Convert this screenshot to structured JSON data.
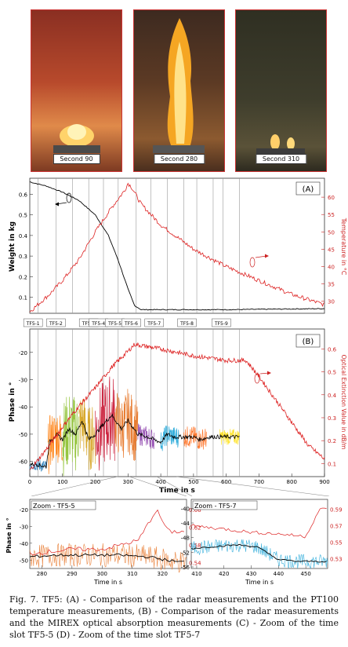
{
  "photos": [
    {
      "label": "Second 90"
    },
    {
      "label": "Second 280"
    },
    {
      "label": "Second 310"
    }
  ],
  "panel_a": {
    "tag": "(A)",
    "ylabel_left": "Weight in kg",
    "ylabel_right": "Temperature in °C",
    "yticks_left": [
      "0.6",
      "0.5",
      "0.4",
      "0.3",
      "0.2",
      "0.1"
    ],
    "yticks_right": [
      "60",
      "55",
      "50",
      "45",
      "40",
      "35",
      "30"
    ],
    "slots": [
      "TF5-1",
      "TF5-2",
      "TF5-3",
      "TF5-4",
      "TF5-5",
      "TF5-6",
      "TF5-7",
      "TF5-8",
      "TF5-9"
    ]
  },
  "panel_b": {
    "tag": "(B)",
    "ylabel_left": "Phase in °",
    "ylabel_right": "Optical Extinction Value in dB/m",
    "yticks_left": [
      "-20",
      "-30",
      "-40",
      "-50",
      "-60"
    ],
    "yticks_right": [
      "0.6",
      "0.5",
      "0.4",
      "0.3",
      "0.2",
      "0.1"
    ],
    "xticks": [
      "0",
      "100",
      "200",
      "300",
      "400",
      "500",
      "600",
      "700",
      "800",
      "900"
    ],
    "xlabel": "Time in s"
  },
  "panel_c": {
    "title": "Zoom - TF5-5",
    "ylabel": "Phase in °",
    "yticks_left": [
      "-20",
      "-30",
      "-40",
      "-50"
    ],
    "yticks_right": [
      "0.66",
      "0.62",
      "0.58",
      "0.54"
    ],
    "xticks": [
      "280",
      "290",
      "300",
      "310",
      "320"
    ],
    "xlabel": "Time in s"
  },
  "panel_d": {
    "title": "Zoom - TF5-7",
    "yticks_left": [
      "-40",
      "-44",
      "-48",
      "-52",
      "-56"
    ],
    "yticks_right": [
      "0.59",
      "0.57",
      "0.55",
      "0.53"
    ],
    "xticks": [
      "410",
      "420",
      "430",
      "440",
      "450"
    ],
    "xlabel": "Time in s"
  },
  "caption": "Fig. 7.   TF5: (A) - Comparison of the radar measurements and the PT100 temperature measurements, (B) - Comparison of the radar measurements and the MIREX optical absorption measurements (C) - Zoom of the time slot TF5-5 (D) - Zoom of the time slot TF5-7",
  "chart_data": [
    {
      "type": "line",
      "xlabel": "Time in s",
      "ylabel": "Weight in kg",
      "ylabel_right": "Temperature in °C",
      "xlim": [
        0,
        900
      ],
      "ylim": [
        0.03,
        0.67
      ],
      "ylim_right": [
        27,
        65
      ],
      "grid": false,
      "series": [
        {
          "x": [
            0,
            50,
            100,
            150,
            200,
            240,
            270,
            300,
            320,
            340,
            400,
            600,
            900
          ],
          "values": [
            0.66,
            0.64,
            0.61,
            0.57,
            0.5,
            0.4,
            0.28,
            0.14,
            0.06,
            0.04,
            0.04,
            0.04,
            0.045
          ],
          "color": "#000"
        },
        {
          "x": [
            0,
            60,
            100,
            150,
            200,
            250,
            290,
            300,
            310,
            340,
            400,
            500,
            600,
            700,
            800,
            900
          ],
          "values": [
            27,
            32,
            36,
            42,
            50,
            57,
            62,
            64,
            63,
            58,
            52,
            45,
            40,
            36,
            32,
            29
          ],
          "color": "#d22"
        }
      ]
    },
    {
      "type": "line",
      "xlabel": "Time in s",
      "ylabel": "Phase in °",
      "ylabel_right": "Optical Extinction Value in dB/m",
      "xlim": [
        0,
        900
      ],
      "ylim": [
        -65,
        -12
      ],
      "ylim_right": [
        0.05,
        0.68
      ],
      "grid": false,
      "series": [
        {
          "x": [
            0,
            20,
            50,
            60,
            80,
            100,
            120,
            140,
            160,
            180,
            200,
            220,
            250,
            280,
            300,
            330,
            360,
            400,
            420,
            440,
            470,
            500,
            520,
            550,
            580,
            600,
            620,
            640
          ],
          "values": [
            -61,
            -61,
            -62,
            -53,
            -50,
            -52,
            -48,
            -50,
            -45,
            -52,
            -50,
            -47,
            -43,
            -48,
            -45,
            -50,
            -51,
            -53,
            -50,
            -51,
            -51,
            -51,
            -52,
            -51,
            -51,
            -51,
            -51,
            -51
          ],
          "color": "#000"
        },
        {
          "x": [
            0,
            60,
            100,
            150,
            200,
            250,
            300,
            320,
            400,
            500,
            600,
            660,
            700,
            750,
            800,
            850,
            900
          ],
          "values": [
            0.07,
            0.18,
            0.26,
            0.35,
            0.43,
            0.52,
            0.59,
            0.62,
            0.6,
            0.57,
            0.55,
            0.55,
            0.48,
            0.38,
            0.28,
            0.18,
            0.12
          ],
          "color": "#d22"
        }
      ]
    },
    {
      "type": "line",
      "xlabel": "Time in s",
      "ylabel": "Phase in °",
      "xlim": [
        276,
        328
      ],
      "ylim": [
        -54,
        -15
      ],
      "ylim_right": [
        0.53,
        0.68
      ],
      "grid": false,
      "series": [
        {
          "x": [
            276,
            285,
            295,
            305,
            315,
            325,
            328
          ],
          "values": [
            -48,
            -47,
            -47,
            -47,
            -48,
            -51,
            -51
          ],
          "color": "#000"
        },
        {
          "x": [
            276,
            290,
            300,
            312,
            318,
            322,
            328
          ],
          "values": [
            0.56,
            0.57,
            0.57,
            0.59,
            0.66,
            0.61,
            0.61
          ],
          "color": "#d22"
        }
      ]
    },
    {
      "type": "line",
      "xlabel": "Time in s",
      "xlim": [
        408,
        458
      ],
      "ylim": [
        -56,
        -38
      ],
      "ylim_right": [
        0.52,
        0.6
      ],
      "grid": false,
      "series": [
        {
          "x": [
            408,
            415,
            425,
            432,
            440,
            447,
            458
          ],
          "values": [
            -51,
            -50.5,
            -50,
            -50.5,
            -54,
            -54.5,
            -54.5
          ],
          "color": "#000"
        },
        {
          "x": [
            408,
            420,
            430,
            440,
            450,
            455,
            458
          ],
          "values": [
            0.57,
            0.566,
            0.562,
            0.56,
            0.557,
            0.59,
            0.59
          ],
          "color": "#d22"
        }
      ]
    }
  ]
}
